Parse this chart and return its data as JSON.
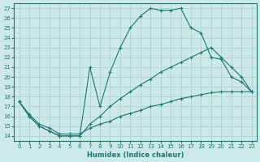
{
  "xlabel": "Humidex (Indice chaleur)",
  "background_color": "#cce8e8",
  "grid_color": "#aacfcf",
  "line_color": "#1a7a6e",
  "xlim": [
    -0.5,
    23.5
  ],
  "ylim": [
    13.5,
    27.5
  ],
  "xticks": [
    0,
    1,
    2,
    3,
    4,
    5,
    6,
    7,
    8,
    9,
    10,
    11,
    12,
    13,
    14,
    15,
    16,
    17,
    18,
    19,
    20,
    21,
    22,
    23
  ],
  "yticks": [
    14,
    15,
    16,
    17,
    18,
    19,
    20,
    21,
    22,
    23,
    24,
    25,
    26,
    27
  ],
  "series": [
    {
      "x": [
        0,
        1,
        2,
        3,
        4,
        5,
        6,
        7,
        8,
        9,
        10,
        11,
        12,
        13,
        14,
        15,
        16,
        17,
        18,
        19,
        20,
        21,
        22,
        23
      ],
      "y": [
        17.5,
        16,
        15,
        14.5,
        14,
        14,
        14,
        21,
        17,
        20.5,
        23,
        25,
        26.2,
        27,
        26.8,
        26.8,
        27,
        25,
        24.5,
        22,
        21.8,
        20,
        19.5,
        18.5
      ]
    },
    {
      "x": [
        0,
        1,
        2,
        3,
        4,
        5,
        6,
        7,
        8,
        9,
        10,
        11,
        12,
        13,
        14,
        15,
        16,
        17,
        18,
        19,
        20,
        21,
        22,
        23
      ],
      "y": [
        17.5,
        16,
        15,
        14.5,
        14,
        14,
        14,
        15.2,
        16,
        17,
        17.8,
        18.5,
        19.2,
        19.8,
        20.5,
        21,
        21.5,
        22,
        22.5,
        23,
        22,
        21,
        20,
        18.5
      ]
    },
    {
      "x": [
        0,
        1,
        2,
        3,
        4,
        5,
        6,
        7,
        8,
        9,
        10,
        11,
        12,
        13,
        14,
        15,
        16,
        17,
        18,
        19,
        20,
        21,
        22,
        23
      ],
      "y": [
        17.5,
        16.2,
        15.2,
        14.8,
        14.2,
        14.2,
        14.2,
        14.8,
        15.2,
        15.5,
        16,
        16.3,
        16.6,
        17,
        17.2,
        17.5,
        17.8,
        18,
        18.2,
        18.4,
        18.5,
        18.5,
        18.5,
        18.5
      ]
    }
  ]
}
